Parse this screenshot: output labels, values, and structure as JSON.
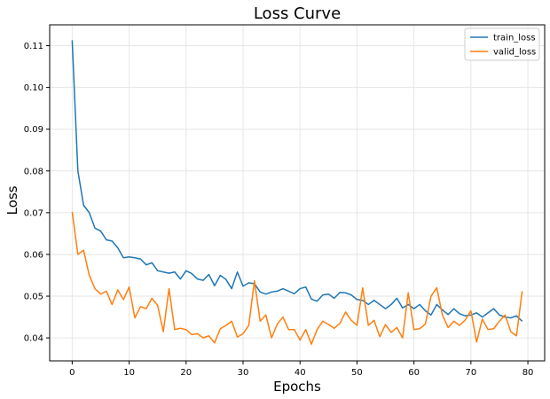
{
  "chart_data": {
    "type": "line",
    "title": "Loss Curve",
    "xlabel": "Epochs",
    "ylabel": "Loss",
    "xlim": [
      -3.95,
      82.95
    ],
    "ylim": [
      0.0345,
      0.115
    ],
    "xticks": [
      0,
      10,
      20,
      30,
      40,
      50,
      60,
      70,
      80
    ],
    "yticks": [
      0.04,
      0.05,
      0.06,
      0.07,
      0.08,
      0.09,
      0.1,
      0.11
    ],
    "ytick_labels": [
      "0.04",
      "0.05",
      "0.06",
      "0.07",
      "0.08",
      "0.09",
      "0.10",
      "0.11"
    ],
    "grid": true,
    "legend_position": "top-right",
    "series": [
      {
        "name": "train_loss",
        "color": "#1f77b4",
        "values": [
          0.1113,
          0.08,
          0.0718,
          0.07,
          0.0663,
          0.0656,
          0.0635,
          0.0632,
          0.0616,
          0.0592,
          0.0594,
          0.0592,
          0.0589,
          0.0575,
          0.058,
          0.0561,
          0.0558,
          0.0555,
          0.0558,
          0.0541,
          0.0561,
          0.0554,
          0.0541,
          0.0538,
          0.0552,
          0.0525,
          0.055,
          0.054,
          0.0518,
          0.0558,
          0.0524,
          0.0532,
          0.053,
          0.051,
          0.0505,
          0.051,
          0.0512,
          0.0518,
          0.0512,
          0.0506,
          0.0518,
          0.0522,
          0.0493,
          0.0488,
          0.0503,
          0.0505,
          0.0495,
          0.0509,
          0.0508,
          0.0503,
          0.0492,
          0.049,
          0.048,
          0.049,
          0.048,
          0.047,
          0.048,
          0.0495,
          0.0472,
          0.048,
          0.047,
          0.048,
          0.0465,
          0.0455,
          0.048,
          0.0467,
          0.0456,
          0.047,
          0.0458,
          0.0453,
          0.0455,
          0.046,
          0.045,
          0.046,
          0.047,
          0.0455,
          0.045,
          0.0448,
          0.0453,
          0.044
        ]
      },
      {
        "name": "valid_loss",
        "color": "#ff7f0e",
        "values": [
          0.0702,
          0.06,
          0.061,
          0.055,
          0.0518,
          0.0505,
          0.0512,
          0.048,
          0.0515,
          0.0492,
          0.0522,
          0.0448,
          0.0475,
          0.047,
          0.0495,
          0.0478,
          0.0415,
          0.0518,
          0.042,
          0.0423,
          0.042,
          0.0408,
          0.041,
          0.04,
          0.0405,
          0.0388,
          0.0422,
          0.043,
          0.044,
          0.0402,
          0.041,
          0.043,
          0.0537,
          0.044,
          0.0455,
          0.04,
          0.0433,
          0.045,
          0.042,
          0.042,
          0.0395,
          0.042,
          0.0385,
          0.042,
          0.044,
          0.0432,
          0.0423,
          0.0435,
          0.0462,
          0.0442,
          0.043,
          0.052,
          0.043,
          0.0442,
          0.0403,
          0.0432,
          0.0413,
          0.0425,
          0.04,
          0.0508,
          0.042,
          0.0422,
          0.0433,
          0.05,
          0.052,
          0.0455,
          0.0425,
          0.044,
          0.043,
          0.0443,
          0.0465,
          0.039,
          0.0445,
          0.042,
          0.0422,
          0.044,
          0.0455,
          0.0415,
          0.0405,
          0.0512
        ]
      }
    ]
  }
}
